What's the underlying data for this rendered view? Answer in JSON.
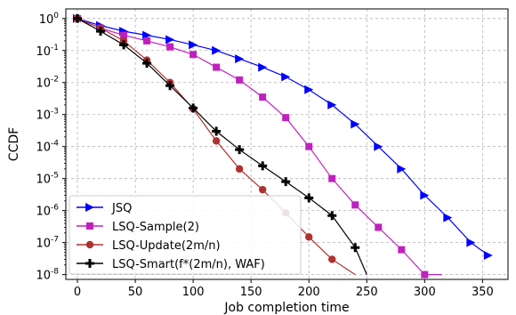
{
  "chart_data": {
    "type": "line",
    "title": "",
    "xlabel": "Job completion time",
    "ylabel": "CCDF",
    "xlim": [
      -10,
      372
    ],
    "ylim_log10": [
      -8.15,
      0.3
    ],
    "y_scale": "log",
    "grid": true,
    "legend_position": "lower-left",
    "x_ticks": [
      {
        "value": 0,
        "label": "0"
      },
      {
        "value": 50,
        "label": "50"
      },
      {
        "value": 100,
        "label": "100"
      },
      {
        "value": 150,
        "label": "150"
      },
      {
        "value": 200,
        "label": "200"
      },
      {
        "value": 250,
        "label": "250"
      },
      {
        "value": 300,
        "label": "300"
      },
      {
        "value": 350,
        "label": "350"
      }
    ],
    "y_ticks": [
      {
        "value": 1,
        "base": "10",
        "exp": "0"
      },
      {
        "value": 0.1,
        "base": "10",
        "exp": "-1"
      },
      {
        "value": 0.01,
        "base": "10",
        "exp": "-2"
      },
      {
        "value": 0.001,
        "base": "10",
        "exp": "-3"
      },
      {
        "value": 0.0001,
        "base": "10",
        "exp": "-4"
      },
      {
        "value": 1e-05,
        "base": "10",
        "exp": "-5"
      },
      {
        "value": 1e-06,
        "base": "10",
        "exp": "-6"
      },
      {
        "value": 1e-07,
        "base": "10",
        "exp": "-7"
      },
      {
        "value": 1e-08,
        "base": "10",
        "exp": "-8"
      }
    ],
    "series": [
      {
        "name": "JSQ",
        "color": "#0000ff",
        "marker": "triangle-right",
        "x": [
          0,
          20,
          40,
          60,
          80,
          100,
          120,
          140,
          160,
          180,
          200,
          220,
          240,
          260,
          280,
          300,
          320,
          340,
          355
        ],
        "y": [
          1.0,
          0.6,
          0.4,
          0.3,
          0.22,
          0.15,
          0.1,
          0.055,
          0.03,
          0.015,
          0.006,
          0.002,
          0.0005,
          0.0001,
          2e-05,
          3e-06,
          6e-07,
          1e-07,
          4e-08
        ]
      },
      {
        "name": "LSQ-Sample(2)",
        "color": "#c020c0",
        "marker": "square",
        "x": [
          0,
          20,
          40,
          60,
          80,
          100,
          120,
          140,
          160,
          180,
          200,
          220,
          240,
          260,
          280,
          300,
          315
        ],
        "y": [
          1.0,
          0.5,
          0.3,
          0.2,
          0.13,
          0.075,
          0.03,
          0.012,
          0.0035,
          0.0008,
          0.0001,
          1e-05,
          1.5e-06,
          3e-07,
          6e-08,
          1e-08,
          1e-08
        ]
      },
      {
        "name": "LSQ-Update(2m/n)",
        "color": "#b03030",
        "marker": "circle",
        "x": [
          0,
          20,
          40,
          60,
          80,
          100,
          120,
          140,
          160,
          180,
          200,
          220,
          240
        ],
        "y": [
          1.0,
          0.5,
          0.2,
          0.05,
          0.01,
          0.0015,
          0.00015,
          2e-05,
          4.5e-06,
          8.5e-07,
          1.5e-07,
          3e-08,
          1e-08
        ]
      },
      {
        "name": "LSQ-Smart(f*(2m/n), WAF)",
        "color": "#000000",
        "marker": "plus",
        "x": [
          0,
          20,
          40,
          60,
          80,
          100,
          120,
          140,
          160,
          180,
          200,
          220,
          240,
          250
        ],
        "y": [
          1.0,
          0.4,
          0.15,
          0.04,
          0.008,
          0.0016,
          0.0003,
          8e-05,
          2.5e-05,
          8e-06,
          2.5e-06,
          7e-07,
          7e-08,
          1e-08
        ]
      }
    ]
  }
}
